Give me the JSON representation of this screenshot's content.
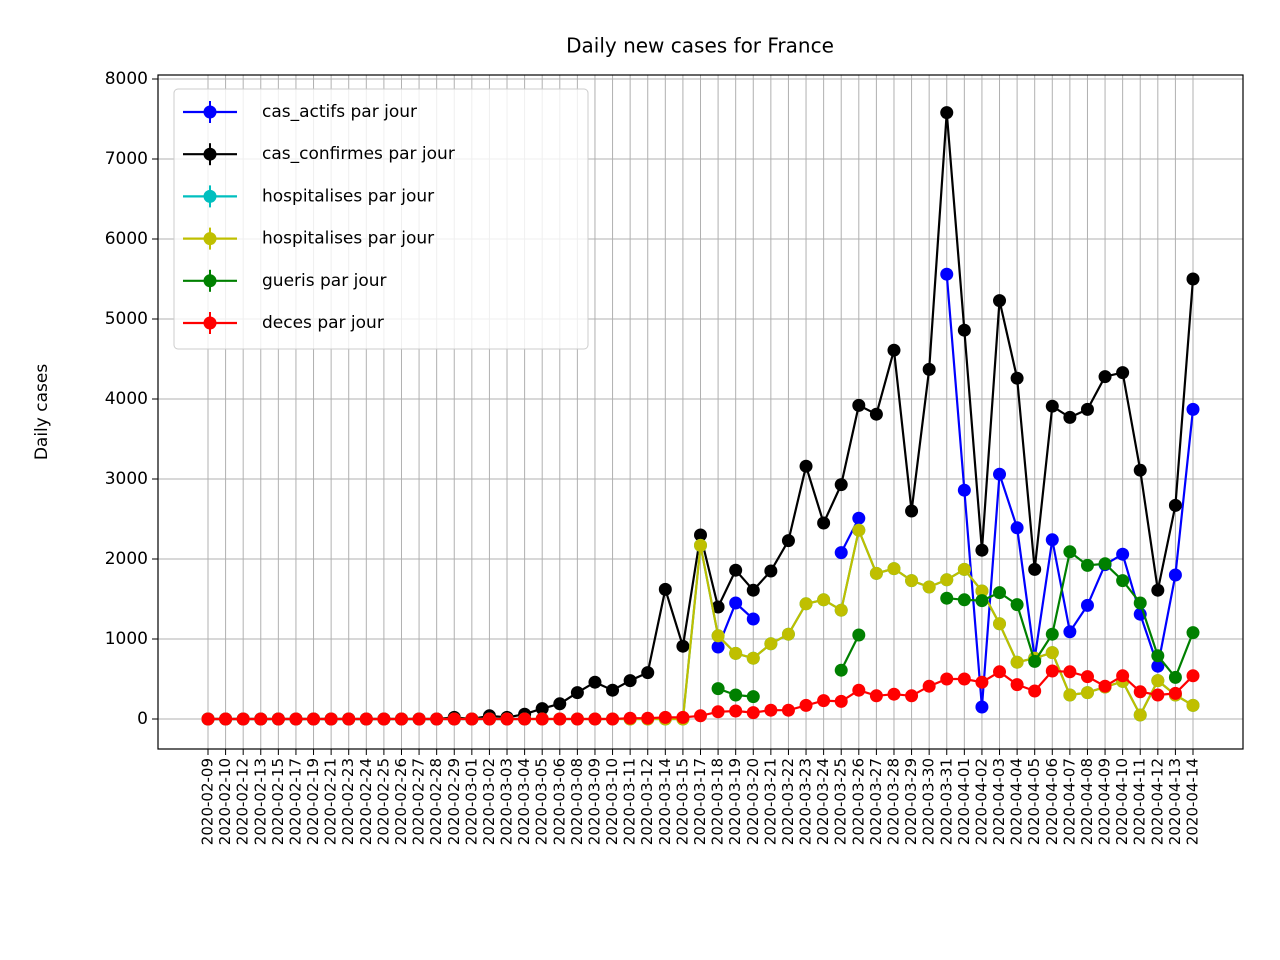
{
  "chart_data": {
    "type": "line",
    "title": "Daily new cases for France",
    "y_label": "Daily cases",
    "categories": [
      "2020-02-09",
      "2020-02-10",
      "2020-02-12",
      "2020-02-13",
      "2020-02-15",
      "2020-02-17",
      "2020-02-19",
      "2020-02-21",
      "2020-02-23",
      "2020-02-24",
      "2020-02-25",
      "2020-02-26",
      "2020-02-27",
      "2020-02-28",
      "2020-02-29",
      "2020-03-01",
      "2020-03-02",
      "2020-03-03",
      "2020-03-04",
      "2020-03-05",
      "2020-03-06",
      "2020-03-08",
      "2020-03-09",
      "2020-03-10",
      "2020-03-11",
      "2020-03-12",
      "2020-03-14",
      "2020-03-15",
      "2020-03-17",
      "2020-03-18",
      "2020-03-19",
      "2020-03-20",
      "2020-03-21",
      "2020-03-22",
      "2020-03-23",
      "2020-03-24",
      "2020-03-25",
      "2020-03-26",
      "2020-03-27",
      "2020-03-28",
      "2020-03-29",
      "2020-03-30",
      "2020-03-31",
      "2020-04-01",
      "2020-04-02",
      "2020-04-03",
      "2020-04-04",
      "2020-04-05",
      "2020-04-06",
      "2020-04-07",
      "2020-04-08",
      "2020-04-09",
      "2020-04-10",
      "2020-04-11",
      "2020-04-12",
      "2020-04-13",
      "2020-04-14"
    ],
    "series": [
      {
        "name": "cas_actifs par jour",
        "color": "#0000ff",
        "values": [
          0,
          0,
          0,
          0,
          0,
          0,
          0,
          0,
          0,
          0,
          0,
          0,
          0,
          0,
          0,
          0,
          0,
          0,
          0,
          null,
          null,
          null,
          null,
          null,
          null,
          null,
          null,
          null,
          null,
          900,
          1450,
          1250,
          null,
          null,
          null,
          null,
          2080,
          2510,
          null,
          null,
          null,
          null,
          5560,
          2860,
          150,
          3060,
          2390,
          760,
          2240,
          1090,
          1420,
          1930,
          2060,
          1310,
          660,
          1800,
          3870
        ]
      },
      {
        "name": "cas_confirmes par jour",
        "color": "#000000",
        "values": [
          0,
          0,
          0,
          0,
          0,
          0,
          0,
          0,
          0,
          0,
          0,
          0,
          0,
          0,
          20,
          0,
          40,
          20,
          60,
          130,
          190,
          330,
          460,
          360,
          480,
          580,
          1620,
          910,
          2300,
          1400,
          1860,
          1610,
          1850,
          2230,
          3160,
          2450,
          2930,
          3920,
          3810,
          4610,
          2600,
          4370,
          7580,
          4860,
          2110,
          5230,
          4260,
          1870,
          3910,
          3770,
          3870,
          4280,
          4330,
          3110,
          1610,
          2670,
          5500
        ]
      },
      {
        "name": "hospitalises par jour",
        "color": "#00bfbf",
        "values": [
          0,
          0,
          0,
          0,
          0,
          0,
          0,
          0,
          0,
          0,
          0,
          0,
          0,
          0,
          0,
          0,
          0,
          0,
          0,
          0,
          0,
          0,
          0,
          0,
          0,
          0,
          0,
          0,
          2170,
          1040,
          820,
          760,
          940,
          1060,
          1440,
          1490,
          1360,
          2360,
          1820,
          1880,
          1730,
          1650,
          1740,
          1870,
          1600,
          1190,
          710,
          760,
          830,
          300,
          330,
          400,
          470,
          50,
          480,
          300,
          170
        ]
      },
      {
        "name": "hospitalises par jour",
        "color": "#bfbf00",
        "values": [
          0,
          0,
          0,
          0,
          0,
          0,
          0,
          0,
          0,
          0,
          0,
          0,
          0,
          0,
          0,
          0,
          0,
          0,
          0,
          0,
          0,
          0,
          0,
          0,
          0,
          0,
          0,
          0,
          2170,
          1040,
          820,
          760,
          940,
          1060,
          1440,
          1490,
          1360,
          2360,
          1820,
          1880,
          1730,
          1650,
          1740,
          1870,
          1600,
          1190,
          710,
          760,
          830,
          300,
          330,
          400,
          470,
          50,
          480,
          300,
          170
        ]
      },
      {
        "name": "gueris par jour",
        "color": "#008000",
        "values": [
          null,
          null,
          null,
          null,
          null,
          null,
          null,
          null,
          null,
          null,
          null,
          null,
          null,
          null,
          null,
          null,
          null,
          null,
          null,
          null,
          null,
          null,
          null,
          null,
          null,
          null,
          null,
          null,
          null,
          380,
          300,
          280,
          null,
          null,
          null,
          null,
          610,
          1050,
          null,
          null,
          null,
          null,
          1510,
          1490,
          1480,
          1580,
          1430,
          720,
          1060,
          2090,
          1920,
          1940,
          1730,
          1450,
          790,
          520,
          1080
        ]
      },
      {
        "name": "deces par jour",
        "color": "#ff0000",
        "values": [
          0,
          0,
          0,
          0,
          0,
          0,
          0,
          0,
          0,
          0,
          0,
          0,
          0,
          0,
          0,
          0,
          0,
          0,
          0,
          0,
          0,
          0,
          0,
          0,
          10,
          10,
          20,
          20,
          40,
          90,
          100,
          80,
          110,
          110,
          170,
          230,
          220,
          360,
          290,
          310,
          290,
          410,
          500,
          500,
          460,
          590,
          430,
          350,
          600,
          590,
          530,
          410,
          540,
          340,
          300,
          320,
          540
        ]
      }
    ],
    "ylim": [
      -375,
      8050
    ],
    "yticks": [
      0,
      1000,
      2000,
      3000,
      4000,
      5000,
      6000,
      7000,
      8000
    ],
    "grid": true,
    "legend": "upper left"
  }
}
